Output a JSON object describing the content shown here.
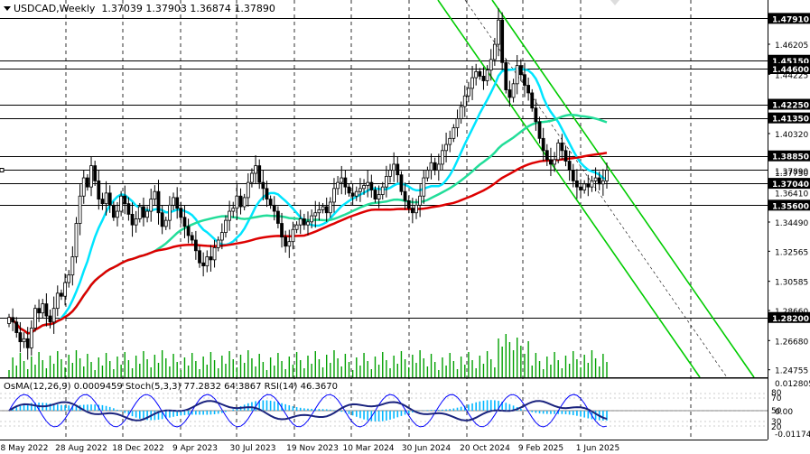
{
  "header": {
    "symbol": "USDCAD,Weekly",
    "ohlc": "1.37039 1.37903 1.36874 1.37890"
  },
  "indicator_header": "OsMA(12,26,9) 0.0009459  Stoch(5,3,3) 77.2832 64.3867  RSI(14) 46.3670",
  "colors": {
    "bull": "#000000",
    "bear": "#000000",
    "ma_fast": "#00e5ff",
    "ma_mid": "#22dd99",
    "ma_slow": "#dd0000",
    "channel": "#00cc00",
    "level": "#000000",
    "osma": "#00b7ff"
  },
  "chart_data": [
    {
      "type": "candlestick",
      "timeframe": "Weekly",
      "ylim": [
        1.2426,
        1.4912
      ],
      "y_ticks": [
        "1.47910",
        "1.46205",
        "1.44225",
        "1.40320",
        "1.38850",
        "1.34490",
        "1.32565",
        "1.30585",
        "1.28660",
        "1.26680",
        "1.24755"
      ],
      "x_ticks": [
        "8 May 2022",
        "28 Aug 2022",
        "18 Dec 2022",
        "9 Apr 2023",
        "30 Jul 2023",
        "19 Nov 2023",
        "10 Mar 2024",
        "30 Jun 2024",
        "20 Oct 2024",
        "9 Feb 2025",
        "1 Jun 2025"
      ],
      "levels": [
        {
          "value": 1.4791,
          "label": "1.47910"
        },
        {
          "value": 1.4515,
          "label": "1.45150"
        },
        {
          "value": 1.446,
          "label": "1.44600"
        },
        {
          "value": 1.4225,
          "label": "1.42250"
        },
        {
          "value": 1.4135,
          "label": "1.41350"
        },
        {
          "value": 1.3885,
          "label": "1.38850"
        },
        {
          "value": 1.3704,
          "label": "1.37040"
        },
        {
          "value": 1.356,
          "label": "1.35600"
        },
        {
          "value": 1.282,
          "label": "1.28200"
        }
      ],
      "price_labels": [
        {
          "value": 1.3789,
          "label": "1.37890"
        },
        {
          "value": 1.3775,
          "label": "1.37750"
        },
        {
          "value": 1.3641,
          "label": "1.36410"
        }
      ],
      "closes": [
        1.282,
        1.279,
        1.272,
        1.266,
        1.268,
        1.262,
        1.275,
        1.288,
        1.285,
        1.291,
        1.283,
        1.279,
        1.288,
        1.298,
        1.296,
        1.305,
        1.31,
        1.322,
        1.344,
        1.362,
        1.374,
        1.368,
        1.382,
        1.372,
        1.36,
        1.357,
        1.364,
        1.356,
        1.348,
        1.352,
        1.362,
        1.357,
        1.35,
        1.343,
        1.347,
        1.355,
        1.348,
        1.352,
        1.36,
        1.365,
        1.351,
        1.342,
        1.346,
        1.356,
        1.361,
        1.354,
        1.348,
        1.342,
        1.336,
        1.333,
        1.326,
        1.318,
        1.316,
        1.322,
        1.32,
        1.328,
        1.333,
        1.338,
        1.346,
        1.352,
        1.354,
        1.362,
        1.355,
        1.361,
        1.371,
        1.377,
        1.382,
        1.371,
        1.367,
        1.36,
        1.356,
        1.352,
        1.344,
        1.335,
        1.329,
        1.332,
        1.34,
        1.343,
        1.347,
        1.343,
        1.345,
        1.349,
        1.351,
        1.353,
        1.355,
        1.351,
        1.358,
        1.367,
        1.371,
        1.374,
        1.368,
        1.364,
        1.362,
        1.365,
        1.367,
        1.369,
        1.371,
        1.366,
        1.36,
        1.363,
        1.368,
        1.375,
        1.379,
        1.383,
        1.376,
        1.365,
        1.359,
        1.354,
        1.351,
        1.356,
        1.362,
        1.374,
        1.379,
        1.384,
        1.379,
        1.383,
        1.392,
        1.396,
        1.4,
        1.407,
        1.413,
        1.421,
        1.428,
        1.433,
        1.44,
        1.444,
        1.441,
        1.438,
        1.445,
        1.452,
        1.462,
        1.478,
        1.45,
        1.432,
        1.427,
        1.436,
        1.448,
        1.442,
        1.435,
        1.43,
        1.42,
        1.411,
        1.4,
        1.392,
        1.386,
        1.383,
        1.386,
        1.397,
        1.392,
        1.385,
        1.379,
        1.372,
        1.368,
        1.366,
        1.37,
        1.368,
        1.372,
        1.374,
        1.37,
        1.372,
        1.379
      ]
    },
    {
      "type": "oscillator",
      "ylim": [
        -0.011743,
        0.012805
      ],
      "y_ticks": [
        "0.012805",
        "0.00",
        "-0.011743"
      ],
      "stoch_ticks": [
        "80",
        "70",
        "50",
        "30",
        "20"
      ],
      "osma": 0.0009459,
      "stoch_main": 77.2832,
      "stoch_signal": 64.3867,
      "rsi": 46.367
    }
  ]
}
